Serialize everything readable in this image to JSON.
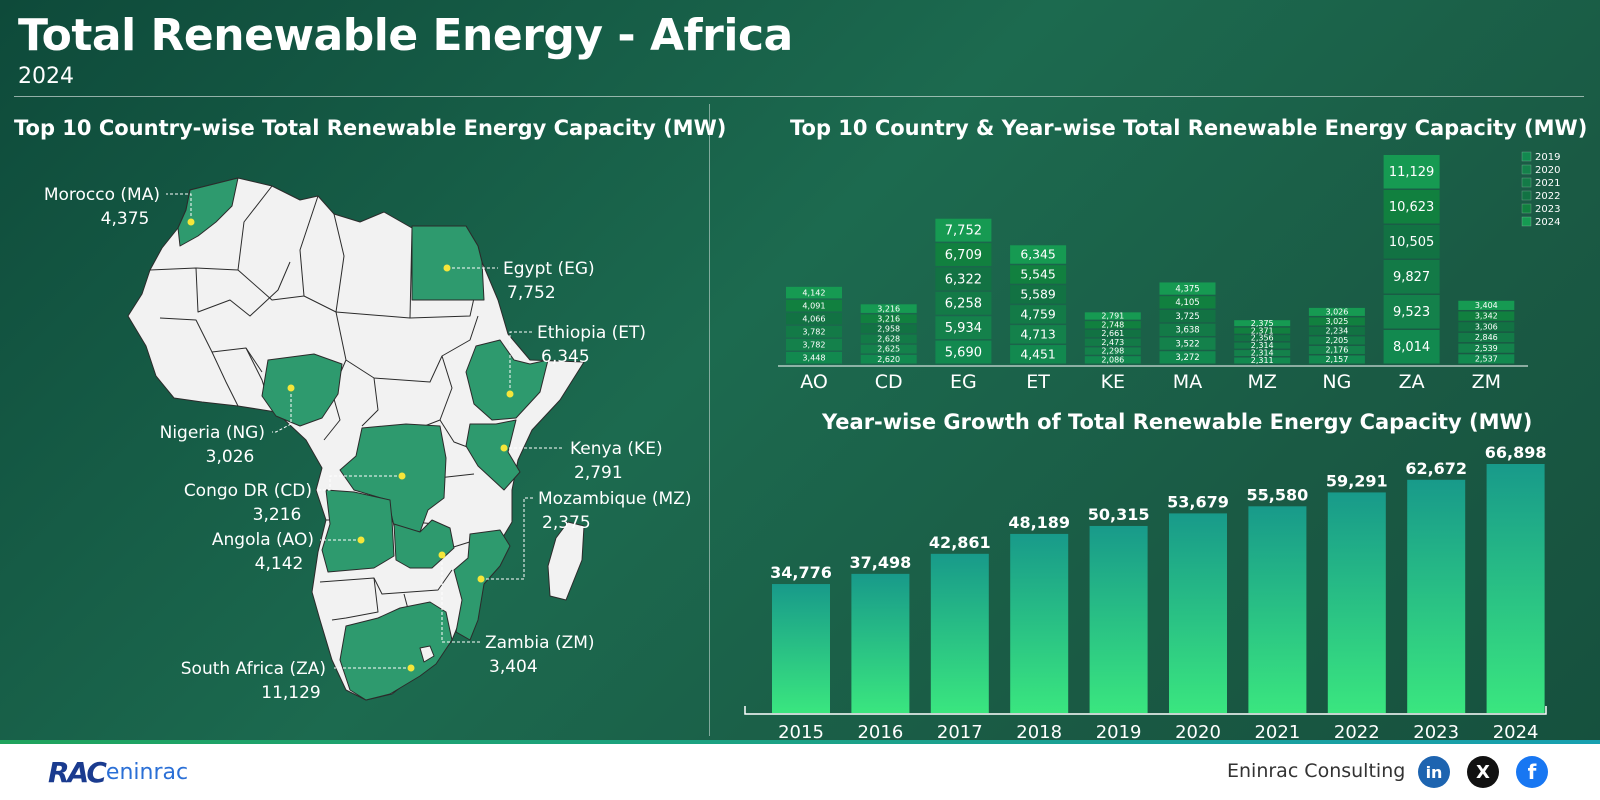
{
  "header": {
    "title": "Total Renewable Energy - Africa",
    "subtitle": "2024"
  },
  "map": {
    "title": "Top 10 Country-wise Total Renewable Energy Capacity (MW)",
    "labels": [
      {
        "name": "Morocco (MA)",
        "value": "4,375"
      },
      {
        "name": "Egypt (EG)",
        "value": "7,752"
      },
      {
        "name": "Ethiopia (ET)",
        "value": "6,345"
      },
      {
        "name": "Nigeria (NG)",
        "value": "3,026"
      },
      {
        "name": "Kenya (KE)",
        "value": "2,791"
      },
      {
        "name": "Congo DR (CD)",
        "value": "3,216"
      },
      {
        "name": "Mozambique (MZ)",
        "value": "2,375"
      },
      {
        "name": "Angola (AO)",
        "value": "4,142"
      },
      {
        "name": "Zambia (ZM)",
        "value": "3,404"
      },
      {
        "name": "South Africa (ZA)",
        "value": "11,129"
      }
    ],
    "colors": {
      "highlight": "#2e9a6e",
      "land": "#f2f2f2",
      "marker": "#f5e63a"
    }
  },
  "chart_data": [
    {
      "type": "bar",
      "stacked": true,
      "title": "Top 10 Country & Year-wise Total Renewable Energy Capacity (MW)",
      "categories": [
        "AO",
        "CD",
        "EG",
        "ET",
        "KE",
        "MA",
        "MZ",
        "NG",
        "ZA",
        "ZM"
      ],
      "legend_position": "top-right",
      "series": [
        {
          "name": "2019",
          "values": [
            3448,
            2620,
            5690,
            4451,
            2086,
            3272,
            2311,
            2157,
            8014,
            2537
          ]
        },
        {
          "name": "2020",
          "values": [
            3782,
            2625,
            5934,
            4713,
            2298,
            3522,
            2314,
            2176,
            9523,
            2539
          ]
        },
        {
          "name": "2021",
          "values": [
            3782,
            2628,
            6258,
            4759,
            2473,
            3638,
            2314,
            2205,
            9827,
            2846
          ]
        },
        {
          "name": "2022",
          "values": [
            4066,
            2958,
            6322,
            5589,
            2661,
            3725,
            2356,
            2234,
            10505,
            3306
          ]
        },
        {
          "name": "2023",
          "values": [
            4091,
            3216,
            6709,
            5545,
            2748,
            4105,
            2371,
            3025,
            10623,
            3342
          ]
        },
        {
          "name": "2024",
          "values": [
            4142,
            3216,
            7752,
            6345,
            2791,
            4375,
            2375,
            3026,
            11129,
            3404
          ]
        }
      ],
      "series_labels": [
        [
          "3,448",
          "2,620",
          "5,690",
          "4,451",
          "2,086",
          "3,272",
          "2,311",
          "2,157",
          "8,014",
          "2,537"
        ],
        [
          "3,782",
          "2,625",
          "5,934",
          "4,713",
          "2,298",
          "3,522",
          "2,314",
          "2,176",
          "9,523",
          "2,539"
        ],
        [
          "3,782",
          "2,628",
          "6,258",
          "4,759",
          "2,473",
          "3,638",
          "2,314",
          "2,205",
          "9,827",
          "2,846"
        ],
        [
          "4,066",
          "2,958",
          "6,322",
          "5,589",
          "2,661",
          "3,725",
          "2,356",
          "2,234",
          "10,505",
          "3,306"
        ],
        [
          "4,091",
          "3,216",
          "6,709",
          "5,545",
          "2,748",
          "4,105",
          "2,371",
          "3,025",
          "10,623",
          "3,342"
        ],
        [
          "4,142",
          "3,216",
          "7,752",
          "6,345",
          "2,791",
          "4,375",
          "2,375",
          "3,026",
          "11,129",
          "3,404"
        ]
      ],
      "colors": [
        "#12894f",
        "#14814b",
        "#137a47",
        "#127243",
        "#11803f",
        "#169a52"
      ]
    },
    {
      "type": "bar",
      "title": "Year-wise Growth of Total Renewable Energy Capacity (MW)",
      "categories": [
        "2015",
        "2016",
        "2017",
        "2018",
        "2019",
        "2020",
        "2021",
        "2022",
        "2023",
        "2024"
      ],
      "values": [
        34776,
        37498,
        42861,
        48189,
        50315,
        53679,
        55580,
        59291,
        62672,
        66898
      ],
      "value_labels": [
        "34,776",
        "37,498",
        "42,861",
        "48,189",
        "50,315",
        "53,679",
        "55,580",
        "59,291",
        "62,672",
        "66,898"
      ],
      "colors": {
        "bar_top": "#189a8a",
        "bar_bottom": "#3ae67f"
      }
    }
  ],
  "footer": {
    "brand_rac": "RAC",
    "brand_eni": "eninrac",
    "company": "Eninrac Consulting",
    "social": {
      "linkedin": "in",
      "x": "X",
      "facebook": "f"
    }
  }
}
